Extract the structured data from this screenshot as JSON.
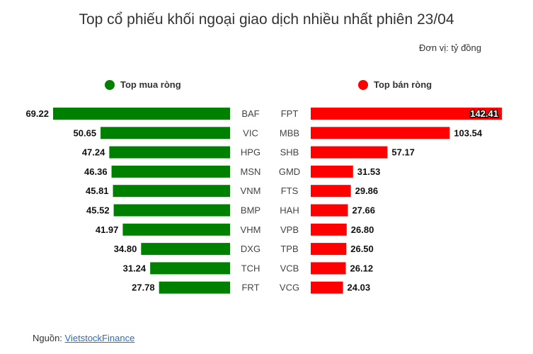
{
  "title": "Top cổ phiếu khối ngoại giao dịch nhiều nhất phiên 23/04",
  "unit": "Đơn vị: tỷ đồng",
  "legend": {
    "buy": "Top mua ròng",
    "sell": "Top bán ròng"
  },
  "colors": {
    "buy": "#008000",
    "sell": "#ff0000"
  },
  "source": {
    "prefix": "Nguồn: ",
    "link": "VietstockFinance"
  },
  "chart_data": {
    "type": "bar",
    "series": [
      {
        "name": "Top mua ròng",
        "categories": [
          "BAF",
          "VIC",
          "HPG",
          "MSN",
          "VNM",
          "BMP",
          "VHM",
          "DXG",
          "TCH",
          "FRT"
        ],
        "values": [
          69.22,
          50.65,
          47.24,
          46.36,
          45.81,
          45.52,
          41.97,
          34.8,
          31.24,
          27.78
        ],
        "labels": [
          "69.22",
          "50.65",
          "47.24",
          "46.36",
          "45.81",
          "45.52",
          "41.97",
          "34.80",
          "31.24",
          "27.78"
        ]
      },
      {
        "name": "Top bán ròng",
        "categories": [
          "FPT",
          "MBB",
          "SHB",
          "GMD",
          "FTS",
          "HAH",
          "VPB",
          "TPB",
          "VCB",
          "VCG"
        ],
        "values": [
          142.41,
          103.54,
          57.17,
          31.53,
          29.86,
          27.66,
          26.8,
          26.5,
          26.12,
          24.03
        ],
        "labels": [
          "142.41",
          "103.54",
          "57.17",
          "31.53",
          "29.86",
          "27.66",
          "26.80",
          "26.50",
          "26.12",
          "24.03"
        ]
      }
    ]
  }
}
